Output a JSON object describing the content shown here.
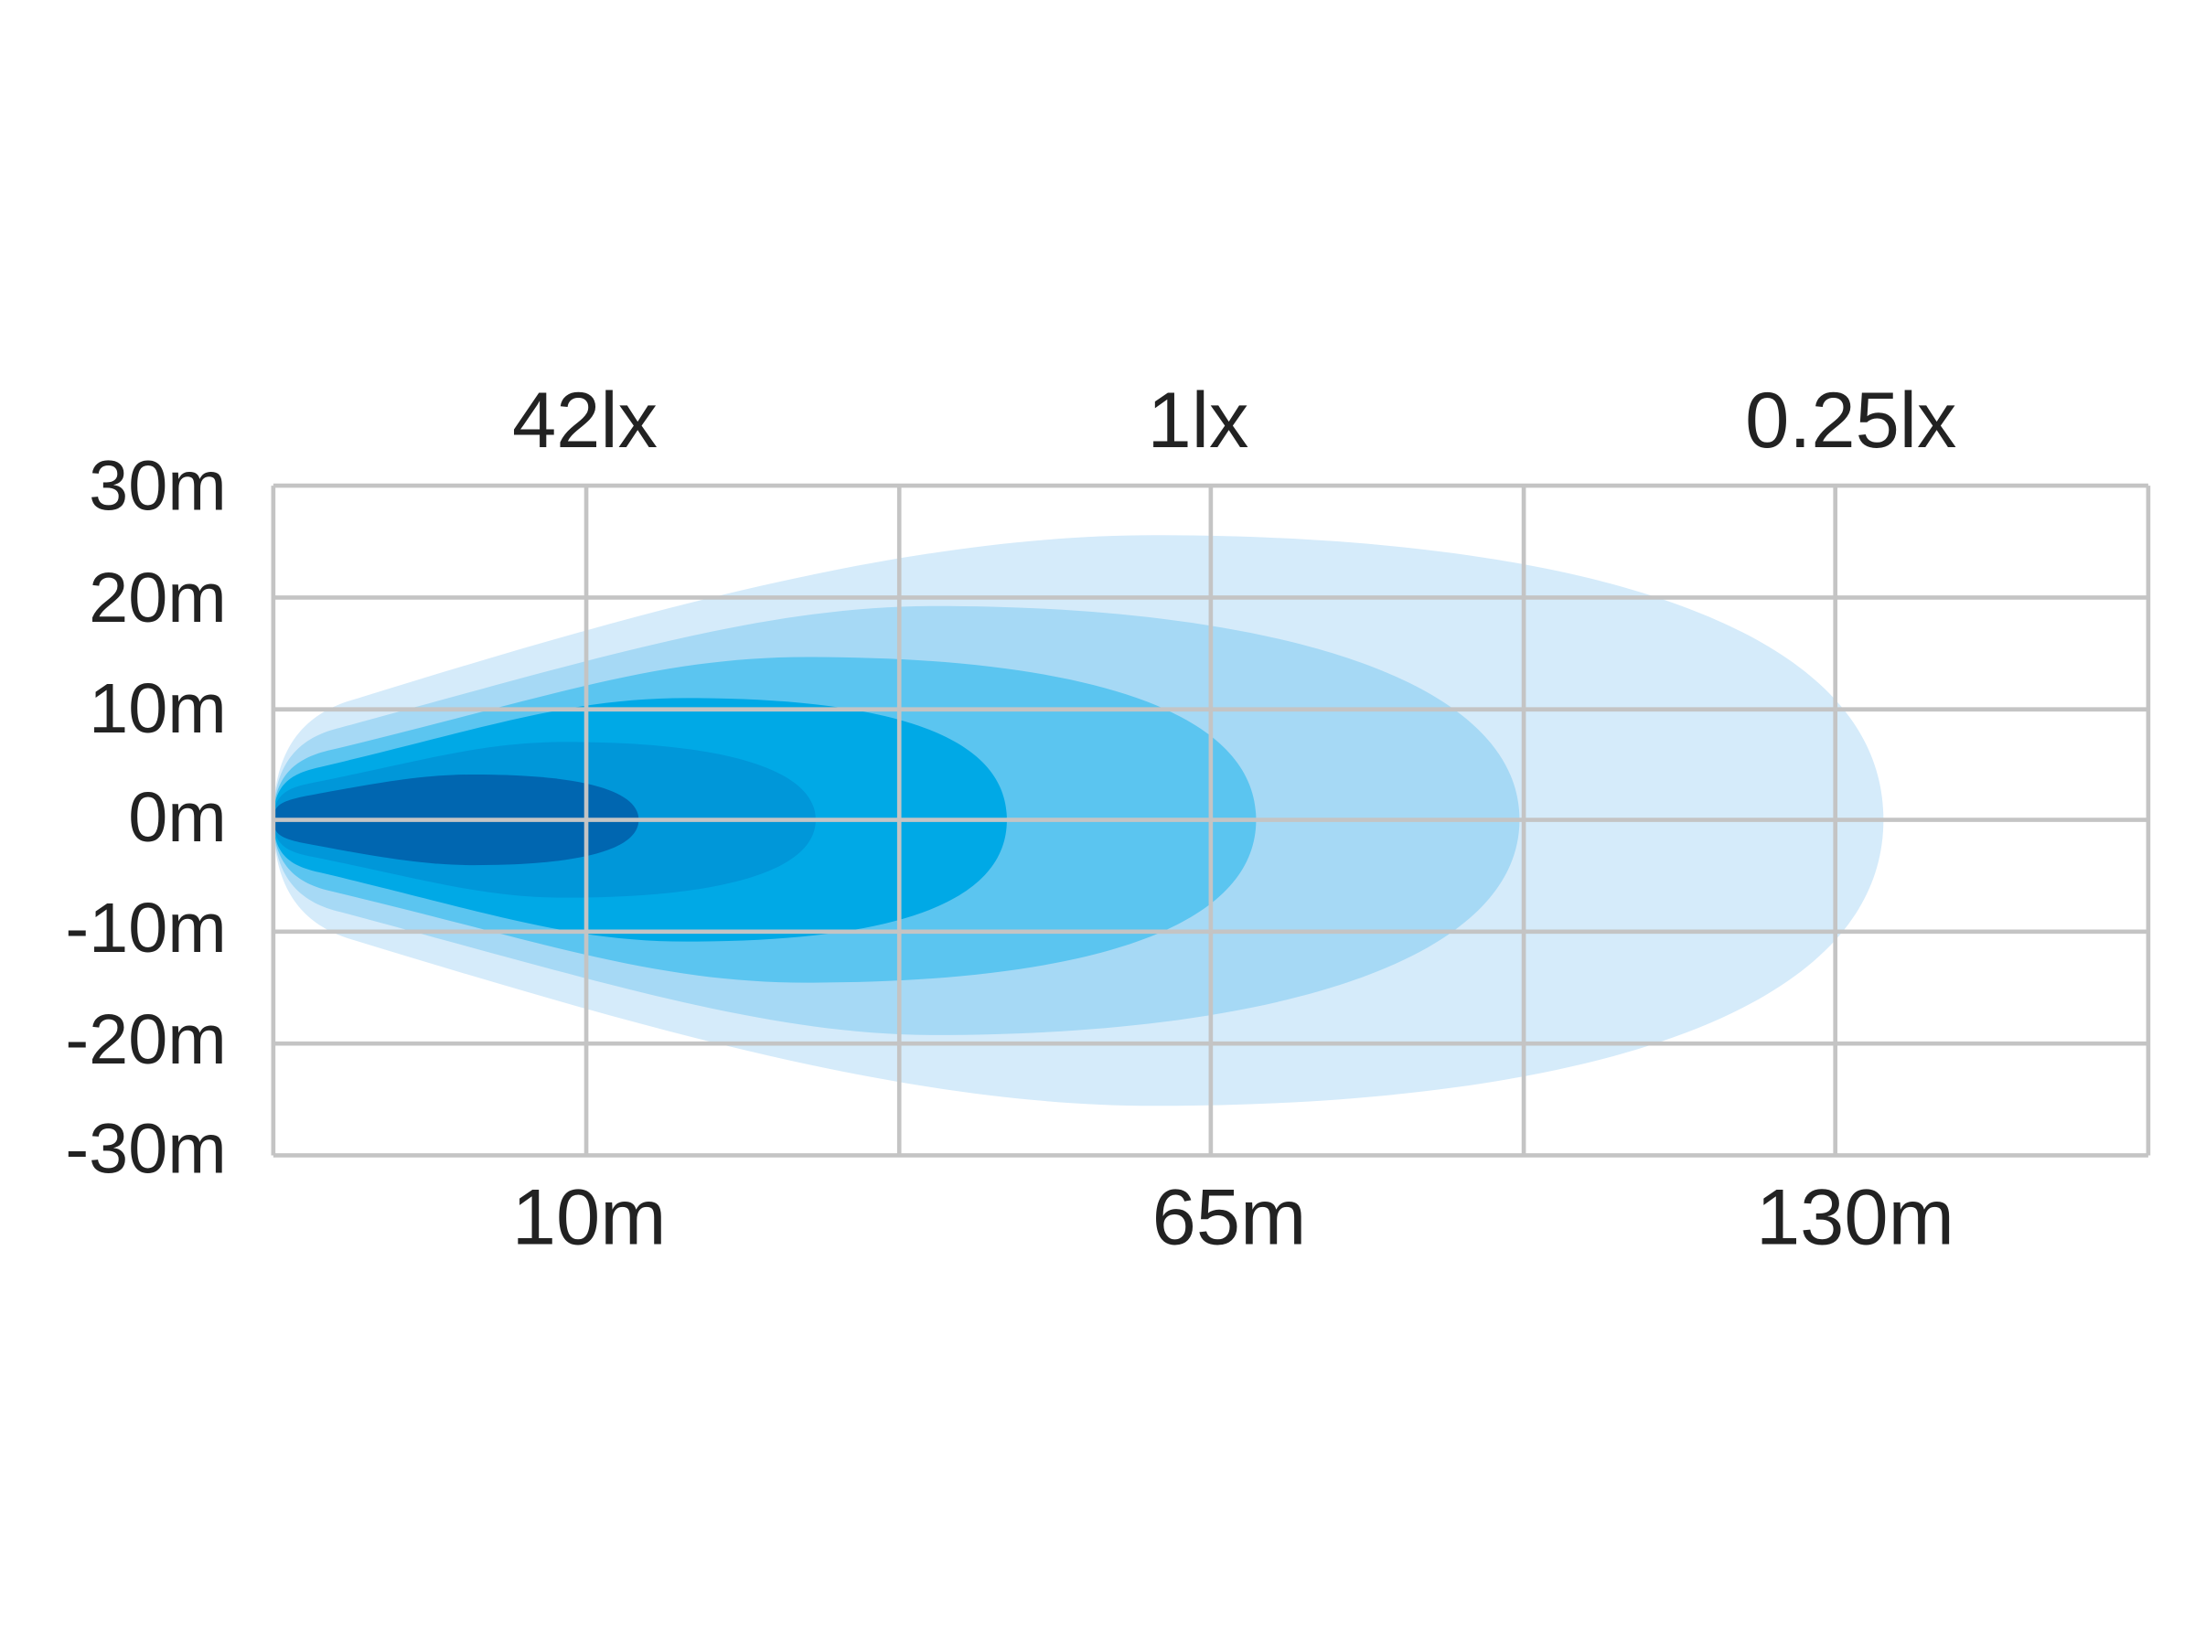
{
  "y_axis_labels": [
    "30m",
    "20m",
    "10m",
    "0m",
    "-10m",
    "-20m",
    "-30m"
  ],
  "top_labels": [
    "42lx",
    "1lx",
    "0.25lx"
  ],
  "bottom_labels": [
    "10m",
    "65m",
    "130m"
  ]
}
